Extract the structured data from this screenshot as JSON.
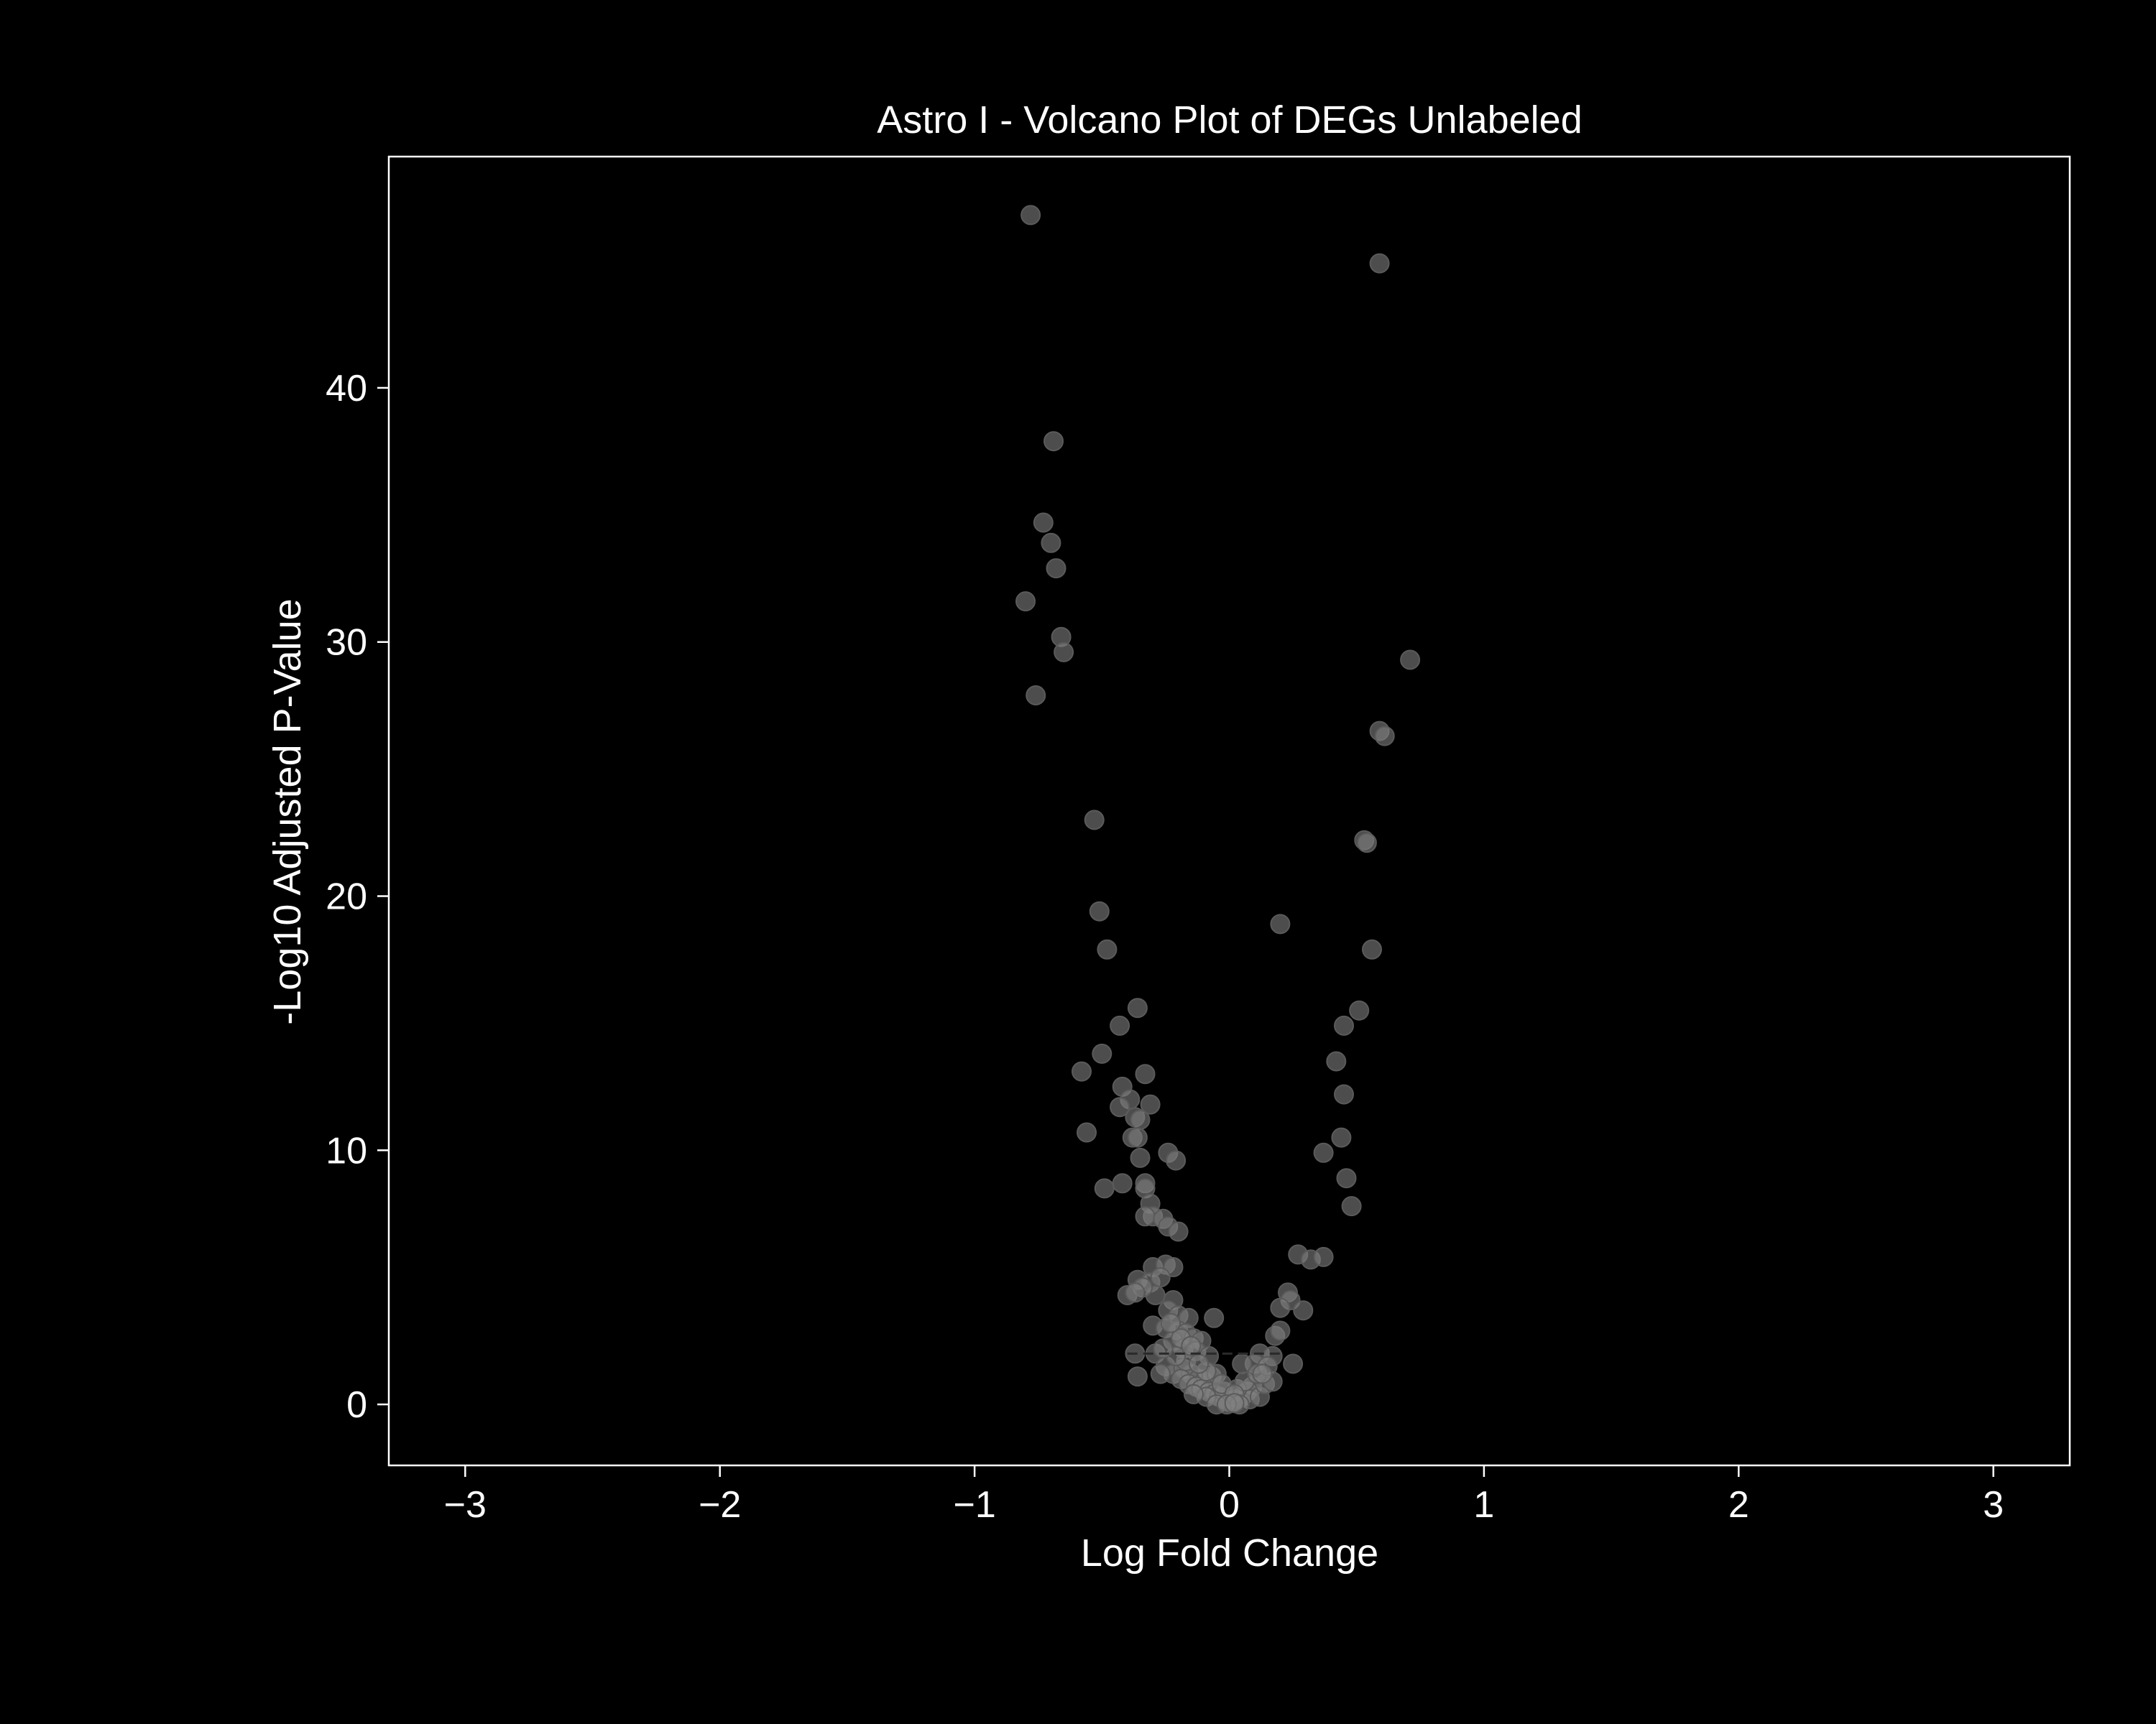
{
  "chart_data": {
    "type": "scatter",
    "title": "Astro I - Volcano Plot of DEGs Unlabeled",
    "xlabel": "Log Fold Change",
    "ylabel": "-Log10 Adjusted P-Value",
    "xlim": [
      -3.3,
      3.3
    ],
    "ylim": [
      -2.4,
      49.1
    ],
    "xticks": [
      {
        "value": -3,
        "label": "−3"
      },
      {
        "value": -2,
        "label": "−2"
      },
      {
        "value": -1,
        "label": "−1"
      },
      {
        "value": 0,
        "label": "0"
      },
      {
        "value": 1,
        "label": "1"
      },
      {
        "value": 2,
        "label": "2"
      },
      {
        "value": 3,
        "label": "3"
      }
    ],
    "yticks": [
      {
        "value": 0,
        "label": "0"
      },
      {
        "value": 10,
        "label": "10"
      },
      {
        "value": 20,
        "label": "20"
      },
      {
        "value": 30,
        "label": "30"
      },
      {
        "value": 40,
        "label": "40"
      }
    ],
    "grid": false,
    "legend": "none",
    "threshold_line": {
      "y": 2.0,
      "x_range": [
        -0.4,
        0.2
      ],
      "style": "dashed"
    },
    "colors": {
      "background": "#000000",
      "axes": "#ffffff",
      "point": "#808080"
    },
    "points": [
      [
        -0.78,
        46.8
      ],
      [
        0.59,
        44.9
      ],
      [
        -0.69,
        37.9
      ],
      [
        -0.73,
        34.7
      ],
      [
        -0.7,
        33.9
      ],
      [
        -0.68,
        32.9
      ],
      [
        -0.8,
        31.6
      ],
      [
        -0.66,
        30.2
      ],
      [
        -0.65,
        29.6
      ],
      [
        -0.76,
        27.9
      ],
      [
        0.71,
        29.3
      ],
      [
        0.59,
        26.5
      ],
      [
        0.61,
        26.3
      ],
      [
        -0.53,
        23.0
      ],
      [
        0.53,
        22.2
      ],
      [
        0.54,
        22.1
      ],
      [
        -0.51,
        19.4
      ],
      [
        -0.48,
        17.9
      ],
      [
        0.2,
        18.9
      ],
      [
        0.56,
        17.9
      ],
      [
        -0.36,
        15.6
      ],
      [
        -0.43,
        14.9
      ],
      [
        0.51,
        15.5
      ],
      [
        0.45,
        14.9
      ],
      [
        -0.58,
        13.1
      ],
      [
        -0.5,
        13.8
      ],
      [
        -0.33,
        13.0
      ],
      [
        0.42,
        13.5
      ],
      [
        -0.42,
        12.5
      ],
      [
        -0.39,
        12.0
      ],
      [
        -0.43,
        11.7
      ],
      [
        -0.31,
        11.8
      ],
      [
        0.45,
        12.2
      ],
      [
        -0.37,
        11.3
      ],
      [
        -0.35,
        11.2
      ],
      [
        -0.56,
        10.7
      ],
      [
        -0.38,
        10.5
      ],
      [
        -0.36,
        10.5
      ],
      [
        0.44,
        10.5
      ],
      [
        -0.24,
        9.9
      ],
      [
        -0.21,
        9.6
      ],
      [
        -0.35,
        9.7
      ],
      [
        0.37,
        9.9
      ],
      [
        -0.33,
        8.7
      ],
      [
        -0.33,
        8.5
      ],
      [
        -0.42,
        8.7
      ],
      [
        -0.49,
        8.5
      ],
      [
        0.46,
        8.9
      ],
      [
        -0.31,
        7.9
      ],
      [
        -0.3,
        7.4
      ],
      [
        -0.33,
        7.4
      ],
      [
        -0.26,
        7.3
      ],
      [
        -0.24,
        7.0
      ],
      [
        -0.2,
        6.8
      ],
      [
        0.48,
        7.8
      ],
      [
        0.27,
        5.9
      ],
      [
        0.32,
        5.7
      ],
      [
        0.37,
        5.8
      ],
      [
        -0.3,
        5.4
      ],
      [
        -0.25,
        5.5
      ],
      [
        -0.22,
        5.4
      ],
      [
        -0.36,
        4.9
      ],
      [
        -0.31,
        4.8
      ],
      [
        -0.27,
        5.0
      ],
      [
        -0.29,
        4.3
      ],
      [
        -0.34,
        4.6
      ],
      [
        -0.4,
        4.3
      ],
      [
        -0.37,
        4.4
      ],
      [
        -0.22,
        4.1
      ],
      [
        0.23,
        4.4
      ],
      [
        0.24,
        4.1
      ],
      [
        0.2,
        3.8
      ],
      [
        0.29,
        3.7
      ],
      [
        -0.24,
        3.7
      ],
      [
        -0.2,
        3.5
      ],
      [
        -0.16,
        3.4
      ],
      [
        -0.06,
        3.4
      ],
      [
        -0.3,
        3.1
      ],
      [
        -0.25,
        3.0
      ],
      [
        -0.2,
        2.9
      ],
      [
        -0.17,
        2.8
      ],
      [
        -0.14,
        2.6
      ],
      [
        -0.11,
        2.5
      ],
      [
        0.18,
        2.7
      ],
      [
        0.2,
        2.9
      ],
      [
        -0.22,
        2.5
      ],
      [
        -0.18,
        2.2
      ],
      [
        -0.13,
        2.1
      ],
      [
        -0.08,
        1.9
      ],
      [
        -0.37,
        2.0
      ],
      [
        -0.29,
        2.0
      ],
      [
        0.12,
        2.0
      ],
      [
        0.17,
        1.9
      ],
      [
        0.25,
        1.6
      ],
      [
        -0.25,
        1.5
      ],
      [
        -0.22,
        1.2
      ],
      [
        -0.27,
        1.2
      ],
      [
        -0.36,
        1.1
      ],
      [
        -0.18,
        1.4
      ],
      [
        -0.15,
        1.2
      ],
      [
        -0.12,
        1.0
      ],
      [
        -0.1,
        0.9
      ],
      [
        -0.07,
        1.1
      ],
      [
        -0.05,
        1.2
      ],
      [
        -0.19,
        1.0
      ],
      [
        -0.16,
        0.8
      ],
      [
        -0.13,
        0.7
      ],
      [
        -0.11,
        0.6
      ],
      [
        -0.08,
        0.5
      ],
      [
        -0.06,
        0.4
      ],
      [
        -0.04,
        0.3
      ],
      [
        -0.02,
        0.2
      ],
      [
        0.0,
        0.1
      ],
      [
        0.01,
        0.1
      ],
      [
        0.03,
        0.2
      ],
      [
        0.05,
        0.3
      ],
      [
        0.07,
        0.5
      ],
      [
        0.09,
        0.7
      ],
      [
        0.1,
        1.6
      ],
      [
        0.05,
        1.6
      ],
      [
        0.08,
        0.2
      ],
      [
        0.12,
        0.3
      ],
      [
        0.14,
        0.8
      ],
      [
        0.17,
        0.9
      ],
      [
        0.03,
        0.6
      ],
      [
        -0.02,
        0.5
      ],
      [
        -0.09,
        0.3
      ],
      [
        -0.14,
        0.4
      ],
      [
        0.06,
        0.9
      ],
      [
        0.11,
        1.2
      ],
      [
        0.15,
        1.5
      ],
      [
        -0.17,
        1.7
      ],
      [
        -0.21,
        1.9
      ],
      [
        -0.09,
        1.3
      ],
      [
        -0.03,
        0.8
      ],
      [
        0.02,
        0.4
      ],
      [
        -0.05,
        0.0
      ],
      [
        0.04,
        0.0
      ],
      [
        -0.01,
        0.0
      ],
      [
        0.02,
        0.05
      ],
      [
        -0.12,
        1.6
      ],
      [
        -0.26,
        2.2
      ],
      [
        -0.19,
        2.6
      ],
      [
        -0.23,
        3.2
      ],
      [
        -0.15,
        2.3
      ],
      [
        0.13,
        1.2
      ]
    ]
  }
}
